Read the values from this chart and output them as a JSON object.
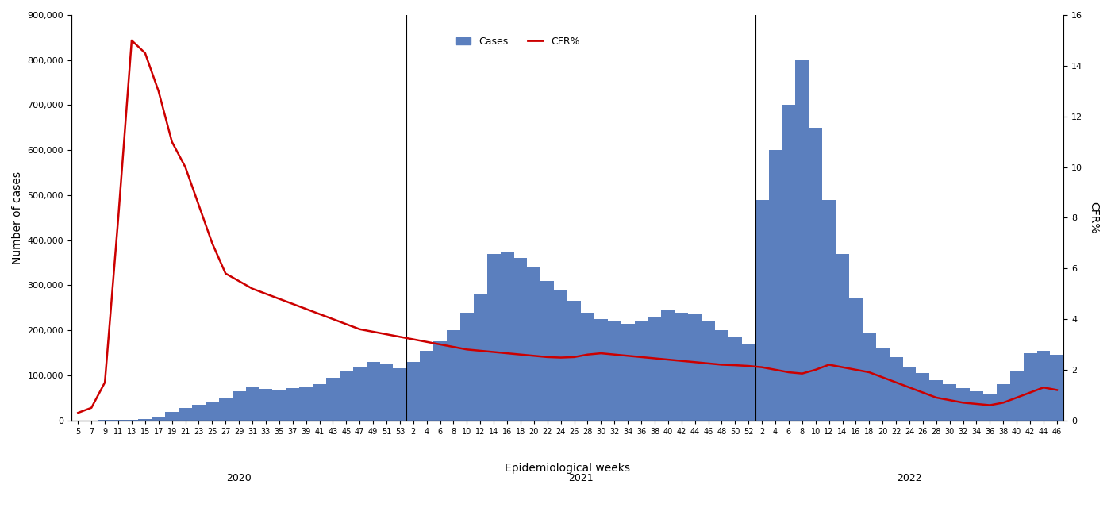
{
  "title": "",
  "xlabel": "Epidemiological weeks",
  "ylabel_left": "Number of cases",
  "ylabel_right": "CFR%",
  "bar_color": "#5b7fbe",
  "line_color": "#cc0000",
  "ylim_left": [
    0,
    900000
  ],
  "ylim_right": [
    0,
    16
  ],
  "yticks_left": [
    0,
    100000,
    200000,
    300000,
    400000,
    500000,
    600000,
    700000,
    800000,
    900000
  ],
  "yticks_right": [
    0,
    2,
    4,
    6,
    8,
    10,
    12,
    14,
    16
  ],
  "year_labels": [
    "2020",
    "2021",
    "2022"
  ],
  "week_labels_2020": [
    "5",
    "7",
    "9",
    "11",
    "13",
    "15",
    "17",
    "19",
    "21",
    "23",
    "25",
    "27",
    "29",
    "31",
    "33",
    "35",
    "37",
    "39",
    "41",
    "43",
    "45",
    "47",
    "49",
    "51",
    "53"
  ],
  "week_labels_2021": [
    "2",
    "4",
    "6",
    "8",
    "10",
    "12",
    "14",
    "16",
    "18",
    "20",
    "22",
    "24",
    "26",
    "28",
    "30",
    "32",
    "34",
    "36",
    "38",
    "40",
    "42",
    "44",
    "46",
    "48",
    "50",
    "52"
  ],
  "week_labels_2022": [
    "2",
    "4",
    "6",
    "8",
    "10",
    "12",
    "14",
    "16",
    "18",
    "20",
    "22",
    "24",
    "26",
    "28",
    "30",
    "32",
    "34",
    "36",
    "38",
    "40",
    "42",
    "44",
    "46"
  ],
  "cases_2020": [
    200,
    300,
    500,
    800,
    1500,
    3000,
    8000,
    18000,
    28000,
    35000,
    40000,
    50000,
    65000,
    75000,
    70000,
    68000,
    72000,
    75000,
    80000,
    95000,
    110000,
    120000,
    130000,
    125000,
    115000
  ],
  "cases_2021": [
    130000,
    155000,
    175000,
    200000,
    240000,
    280000,
    370000,
    375000,
    360000,
    340000,
    310000,
    290000,
    265000,
    240000,
    225000,
    220000,
    215000,
    220000,
    230000,
    245000,
    240000,
    235000,
    220000,
    200000,
    185000,
    170000
  ],
  "cases_2022": [
    490000,
    600000,
    700000,
    800000,
    650000,
    490000,
    370000,
    270000,
    195000,
    160000,
    140000,
    120000,
    105000,
    90000,
    80000,
    72000,
    65000,
    60000,
    80000,
    110000,
    150000,
    155000,
    145000
  ],
  "cfr_2020": [
    0.3,
    0.5,
    1.5,
    8.0,
    15.0,
    14.5,
    13.0,
    11.0,
    10.0,
    8.5,
    7.0,
    5.8,
    5.5,
    5.2,
    5.0,
    4.8,
    4.6,
    4.4,
    4.2,
    4.0,
    3.8,
    3.6,
    3.5,
    3.4,
    3.3
  ],
  "cfr_2021": [
    3.2,
    3.1,
    3.0,
    2.9,
    2.8,
    2.75,
    2.7,
    2.65,
    2.6,
    2.55,
    2.5,
    2.48,
    2.5,
    2.6,
    2.65,
    2.6,
    2.55,
    2.5,
    2.45,
    2.4,
    2.35,
    2.3,
    2.25,
    2.2,
    2.18,
    2.15
  ],
  "cfr_2022": [
    2.1,
    2.0,
    1.9,
    1.85,
    2.0,
    2.2,
    2.1,
    2.0,
    1.9,
    1.7,
    1.5,
    1.3,
    1.1,
    0.9,
    0.8,
    0.7,
    0.65,
    0.6,
    0.7,
    0.9,
    1.1,
    1.3,
    1.2
  ]
}
